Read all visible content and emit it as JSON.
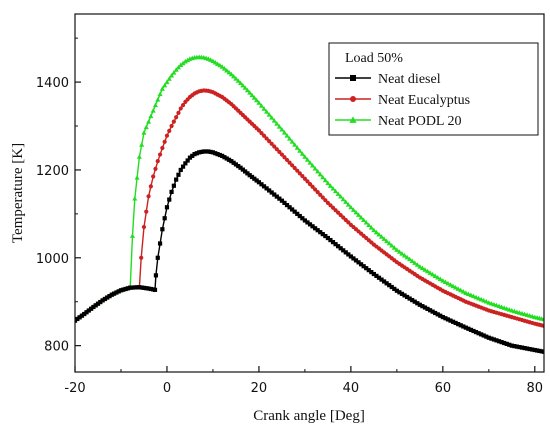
{
  "chart_data": {
    "type": "line",
    "title": "",
    "xlabel": "Crank angle [Deg]",
    "ylabel": "Temperature [K]",
    "xlim": [
      -20,
      82
    ],
    "ylim": [
      740,
      1555
    ],
    "x_ticks": [
      -20,
      0,
      20,
      40,
      60,
      80
    ],
    "y_ticks": [
      800,
      1000,
      1200,
      1400
    ],
    "grid": false,
    "legend": {
      "title": "Load 50%",
      "placement": "top-right"
    },
    "series": [
      {
        "name": "Neat diesel",
        "color": "#000000",
        "marker": "square",
        "x": [
          -20,
          -18,
          -16,
          -14,
          -12,
          -10,
          -8,
          -6,
          -4,
          -3,
          -2.6,
          -2.4,
          -2,
          -1,
          0,
          1,
          2,
          3,
          4,
          5,
          6,
          7,
          8,
          9,
          10,
          12,
          14,
          16,
          18,
          20,
          25,
          30,
          35,
          40,
          45,
          50,
          55,
          60,
          65,
          70,
          75,
          80,
          82
        ],
        "values": [
          857,
          872,
          888,
          903,
          916,
          926,
          932,
          933,
          930,
          928,
          927,
          960,
          1000,
          1065,
          1115,
          1150,
          1178,
          1200,
          1215,
          1228,
          1236,
          1240,
          1242,
          1242,
          1240,
          1232,
          1220,
          1205,
          1188,
          1172,
          1130,
          1085,
          1045,
          1003,
          963,
          925,
          893,
          865,
          841,
          818,
          800,
          790,
          786
        ]
      },
      {
        "name": "Neat Eucalyptus",
        "color": "#cc2222",
        "marker": "circle",
        "x": [
          -20,
          -18,
          -16,
          -14,
          -12,
          -10,
          -8,
          -6,
          -5.6,
          -5,
          -4,
          -3,
          -2,
          -1,
          0,
          1,
          2,
          3,
          4,
          5,
          6,
          7,
          8,
          9,
          10,
          12,
          14,
          16,
          18,
          20,
          25,
          30,
          35,
          40,
          45,
          50,
          55,
          60,
          65,
          70,
          75,
          80,
          82
        ],
        "values": [
          857,
          872,
          888,
          903,
          916,
          926,
          932,
          933,
          1000,
          1070,
          1140,
          1185,
          1220,
          1250,
          1278,
          1300,
          1320,
          1340,
          1355,
          1366,
          1374,
          1379,
          1381,
          1380,
          1377,
          1366,
          1350,
          1330,
          1310,
          1290,
          1235,
          1180,
          1125,
          1075,
          1030,
          990,
          955,
          925,
          900,
          880,
          865,
          850,
          845
        ]
      },
      {
        "name": "Neat PODL 20",
        "color": "#22dd22",
        "marker": "triangle",
        "x": [
          -20,
          -18,
          -16,
          -14,
          -12,
          -10,
          -8,
          -7.5,
          -7,
          -6,
          -5,
          -4,
          -3,
          -2,
          -1,
          0,
          1,
          2,
          3,
          4,
          5,
          6,
          7,
          8,
          9,
          10,
          12,
          14,
          16,
          18,
          20,
          25,
          30,
          35,
          40,
          45,
          50,
          55,
          60,
          65,
          70,
          75,
          80,
          82
        ],
        "values": [
          857,
          872,
          888,
          903,
          916,
          926,
          932,
          1050,
          1135,
          1230,
          1285,
          1310,
          1335,
          1360,
          1385,
          1400,
          1415,
          1428,
          1439,
          1447,
          1453,
          1456,
          1457,
          1456,
          1453,
          1448,
          1435,
          1418,
          1398,
          1376,
          1353,
          1292,
          1230,
          1170,
          1115,
          1063,
          1018,
          980,
          948,
          920,
          898,
          880,
          865,
          860
        ]
      }
    ]
  }
}
